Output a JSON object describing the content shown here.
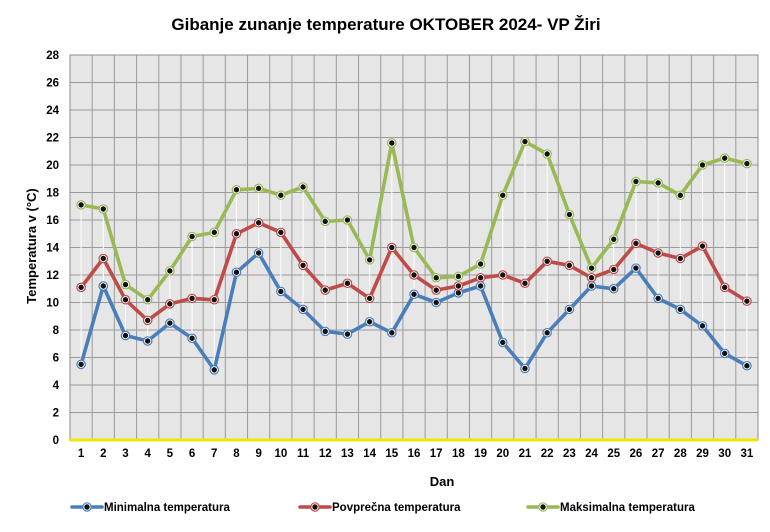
{
  "chart_data": {
    "type": "line",
    "title": "Gibanje zunanje temperature OKTOBER  2024- VP Žiri",
    "xlabel": "Dan",
    "ylabel": "Temperatura v (°C)",
    "ylim": [
      0,
      28
    ],
    "ytick_step": 2,
    "grid": true,
    "legend_position": "bottom",
    "categories": [
      "1",
      "2",
      "3",
      "4",
      "5",
      "6",
      "7",
      "8",
      "9",
      "10",
      "11",
      "12",
      "13",
      "14",
      "15",
      "16",
      "17",
      "18",
      "19",
      "20",
      "21",
      "22",
      "23",
      "24",
      "25",
      "26",
      "27",
      "28",
      "29",
      "30",
      "31"
    ],
    "series": [
      {
        "name": "Minimalna temperatura",
        "color": "#4a7ebb",
        "values": [
          5.5,
          11.2,
          7.6,
          7.2,
          8.5,
          7.4,
          5.1,
          12.2,
          13.6,
          10.8,
          9.5,
          7.9,
          7.7,
          8.6,
          7.8,
          10.6,
          10.0,
          10.7,
          11.2,
          7.1,
          5.2,
          7.8,
          9.5,
          11.2,
          11.0,
          12.5,
          10.3,
          9.5,
          8.3,
          6.3,
          5.4
        ]
      },
      {
        "name": "Povprečna temperatura",
        "color": "#be4b48",
        "values": [
          11.1,
          13.2,
          10.2,
          8.7,
          9.9,
          10.3,
          10.2,
          15.0,
          15.8,
          15.1,
          12.7,
          10.9,
          11.4,
          10.3,
          14.0,
          12.0,
          10.9,
          11.2,
          11.8,
          12.0,
          11.4,
          13.0,
          12.7,
          11.8,
          12.4,
          14.3,
          13.6,
          13.2,
          14.1,
          11.1,
          10.1
        ]
      },
      {
        "name": "Maksimalna temperatura",
        "color": "#98b954",
        "values": [
          17.1,
          16.8,
          11.3,
          10.2,
          12.3,
          14.8,
          15.1,
          18.2,
          18.3,
          17.8,
          18.4,
          15.9,
          16.0,
          13.1,
          21.6,
          14.0,
          11.8,
          11.9,
          12.8,
          17.8,
          21.7,
          20.8,
          16.4,
          12.5,
          14.6,
          18.8,
          18.7,
          17.8,
          20.0,
          20.5,
          20.1
        ]
      }
    ]
  }
}
